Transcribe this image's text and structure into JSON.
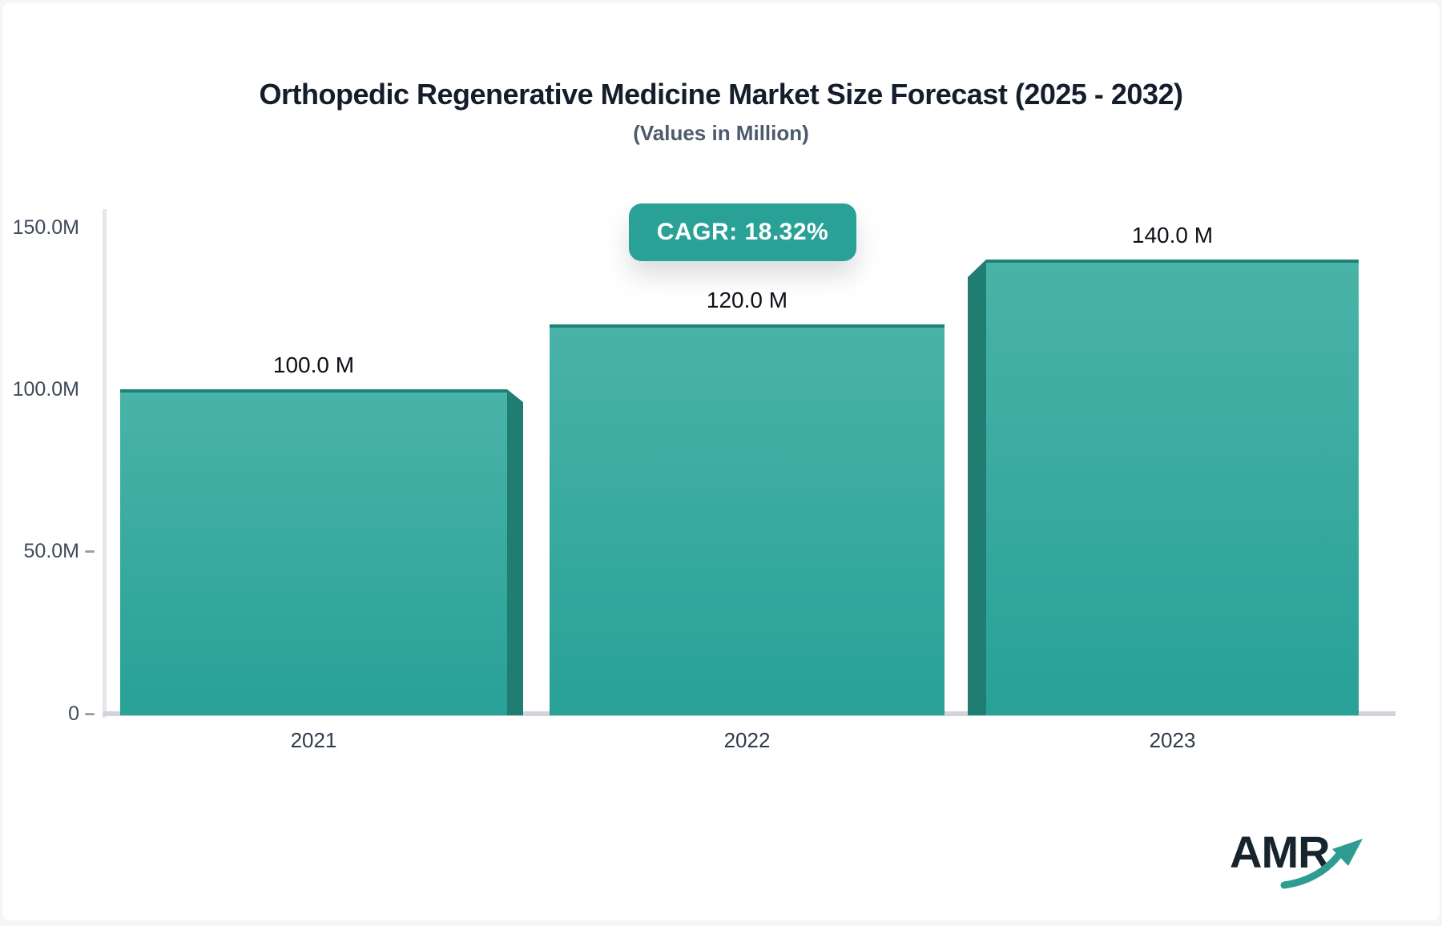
{
  "page": {
    "background": "#f4f5f7",
    "card_background": "#ffffff"
  },
  "header": {
    "title": "Orthopedic Regenerative Medicine Market Size Forecast (2025 - 2032)",
    "subtitle": "(Values in Million)"
  },
  "badge": {
    "label": "CAGR: 18.32%",
    "background": "#2aa197",
    "text_color": "#ffffff"
  },
  "logo": {
    "text": "AMR",
    "arrow_icon": "trend-up-arrow",
    "text_color": "#16242e",
    "arrow_color": "#2f9c92"
  },
  "chart_data": {
    "type": "bar",
    "title": "Orthopedic Regenerative Medicine Market Size Forecast (2025 - 2032)",
    "subtitle": "(Values in Million)",
    "unit": "Million",
    "cagr_pct": 18.32,
    "categories": [
      "2021",
      "2022",
      "2023"
    ],
    "values": [
      100.0,
      120.0,
      140.0
    ],
    "bar_labels": [
      "100.0 M",
      "120.0 M",
      "140.0 M"
    ],
    "ylim": [
      0,
      150
    ],
    "y_ticks": [
      {
        "label": "150.0M",
        "value": 150,
        "dash": false
      },
      {
        "label": "100.0M",
        "value": 100,
        "dash": false
      },
      {
        "label": "50.0M",
        "value": 50,
        "dash": true
      },
      {
        "label": "0",
        "value": 0,
        "dash": true
      }
    ],
    "grid": false,
    "legend": "none",
    "bar_colors": {
      "face_top": "#4ab3a8",
      "face_bottom": "#28a197",
      "top_edge": "#1d8176",
      "side": "#207d72"
    },
    "axis_colors": {
      "y_axis_line": "#e6e7eb",
      "x_axis_line": "#d2d4da",
      "tick_text": "#3f4a5a"
    }
  }
}
